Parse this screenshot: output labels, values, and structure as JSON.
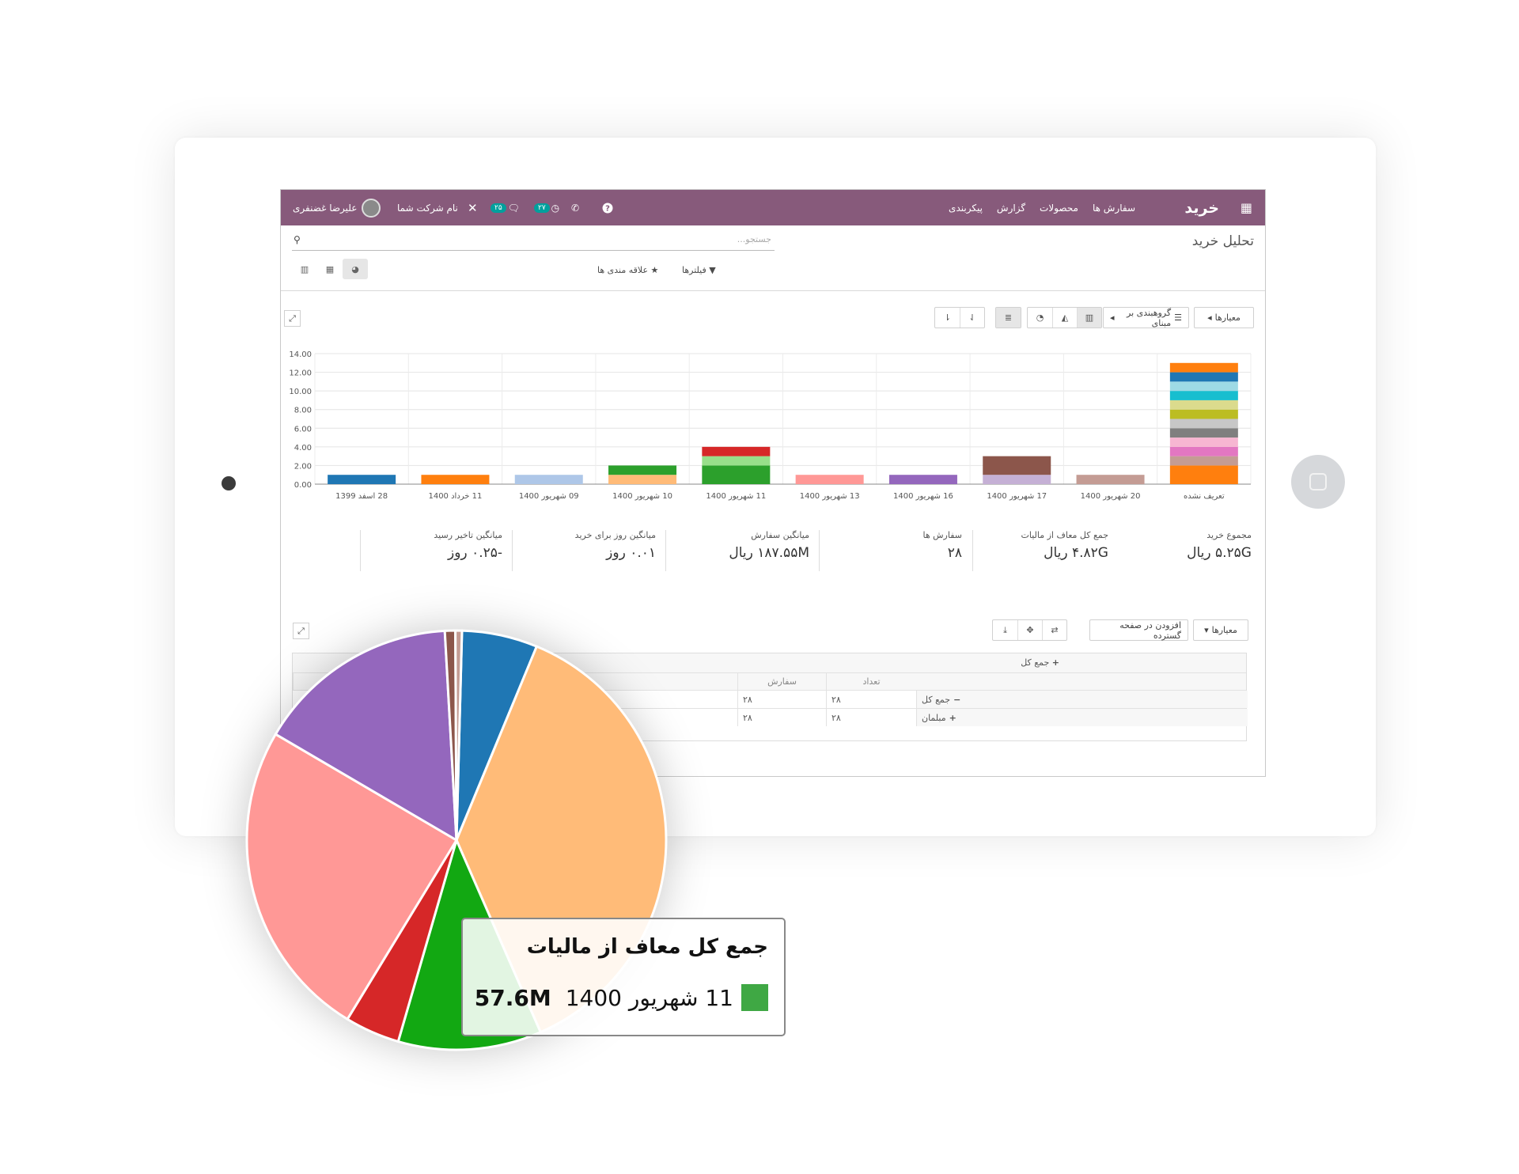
{
  "topbar": {
    "brand": "خرید",
    "menu": [
      "سفارش ها",
      "محصولات",
      "گزارش",
      "پیکربندی"
    ],
    "activity_badge": "۲۷",
    "messages_badge": "۲۵",
    "company": "نام شرکت شما",
    "user": "علیرضا غضنفری",
    "icons": [
      "apps-grid-icon",
      "help-icon",
      "phone-icon",
      "clock-icon",
      "chat-icon",
      "close-icon",
      "avatar"
    ]
  },
  "page": {
    "breadcrumb": "تحلیل خرید",
    "search_placeholder": "جستجو...",
    "filters_label": "فیلترها",
    "favorites_label": "علاقه مندی ها"
  },
  "graph_controls": {
    "measures_label": "معیارها",
    "groupby_label": "گروهبندی بر مبنای"
  },
  "kpis": [
    {
      "label": "مجموع خرید",
      "value": "۵.۲۵G ریال"
    },
    {
      "label": "جمع کل معاف از مالیات",
      "value": "۴.۸۲G ریال"
    },
    {
      "label": "سفارش ها",
      "value": "۲۸"
    },
    {
      "label": "میانگین سفارش",
      "value": "۱۸۷.۵۵M ریال"
    },
    {
      "label": "میانگین روز برای خرید",
      "value": "۰.۰۱ روز"
    },
    {
      "label": "میانگین تاخیر رسید",
      "value": "-۰.۲۵ روز"
    }
  ],
  "pivot": {
    "measures_label": "معیارها",
    "insert_label": "افزودن در صفحه گسترده",
    "header_total": "جمع کل",
    "col_headers": [
      "تعداد",
      "سفارش",
      "جمع کل معاف از مالیات"
    ],
    "rows": [
      {
        "label": "جمع کل",
        "qty": "۲۸",
        "orders": "۲۸"
      },
      {
        "label": "مبلمان",
        "qty": "۲۸",
        "orders": "۲۸"
      }
    ]
  },
  "chart_data": [
    {
      "type": "bar",
      "categories": [
        "28 اسفد 1399",
        "11 خرداد 1400",
        "09 شهریور 1400",
        "10 شهریور 1400",
        "11 شهریور 1400",
        "13 شهریور 1400",
        "16 شهریور 1400",
        "17 شهریور 1400",
        "20 شهریور 1400",
        "تعریف نشده"
      ],
      "ylim": [
        0,
        14
      ],
      "yticks": [
        "0.00",
        "2.00",
        "4.00",
        "6.00",
        "8.00",
        "10.00",
        "12.00",
        "14.00"
      ],
      "stacks": [
        [
          {
            "value": 1,
            "color": "#1f77b4"
          }
        ],
        [
          {
            "value": 1,
            "color": "#ff7f0e"
          }
        ],
        [
          {
            "value": 1,
            "color": "#aec7e8"
          }
        ],
        [
          {
            "value": 1,
            "color": "#ffbb78"
          },
          {
            "value": 1,
            "color": "#2ca02c"
          }
        ],
        [
          {
            "value": 2,
            "color": "#2ca02c"
          },
          {
            "value": 1,
            "color": "#98df8a"
          },
          {
            "value": 1,
            "color": "#d62728"
          }
        ],
        [
          {
            "value": 1,
            "color": "#ff9896"
          }
        ],
        [
          {
            "value": 1,
            "color": "#9467bd"
          }
        ],
        [
          {
            "value": 1,
            "color": "#c5b0d5"
          },
          {
            "value": 2,
            "color": "#8c564b"
          }
        ],
        [
          {
            "value": 1,
            "color": "#c49c94"
          }
        ],
        [
          {
            "value": 2,
            "color": "#ff7f0e"
          },
          {
            "value": 1,
            "color": "#c49c94"
          },
          {
            "value": 1,
            "color": "#e377c2"
          },
          {
            "value": 1,
            "color": "#f7b6d2"
          },
          {
            "value": 1,
            "color": "#7f7f7f"
          },
          {
            "value": 1,
            "color": "#c7c7c7"
          },
          {
            "value": 1,
            "color": "#bcbd22"
          },
          {
            "value": 1,
            "color": "#dbdb8d"
          },
          {
            "value": 1,
            "color": "#17becf"
          },
          {
            "value": 1,
            "color": "#9edae5"
          },
          {
            "value": 1,
            "color": "#1f77b4"
          },
          {
            "value": 1,
            "color": "#ff7f0e"
          }
        ]
      ]
    },
    {
      "type": "pie",
      "slices": [
        {
          "value": 5.8,
          "color": "#1f77b4"
        },
        {
          "value": 37.0,
          "color": "#ffbb78"
        },
        {
          "value": 11.0,
          "color": "#12a812"
        },
        {
          "value": 4.2,
          "color": "#d62728"
        },
        {
          "value": 24.6,
          "color": "#ff9896"
        },
        {
          "value": 15.6,
          "color": "#9467bd"
        },
        {
          "value": 0.8,
          "color": "#8c564b"
        },
        {
          "value": 0.5,
          "color": "#c49c94"
        }
      ],
      "tooltip": {
        "title": "جمع کل معاف از مالیات",
        "label": "11 شهریور 1400",
        "value": "57.6M",
        "color": "#3fa844"
      }
    }
  ]
}
